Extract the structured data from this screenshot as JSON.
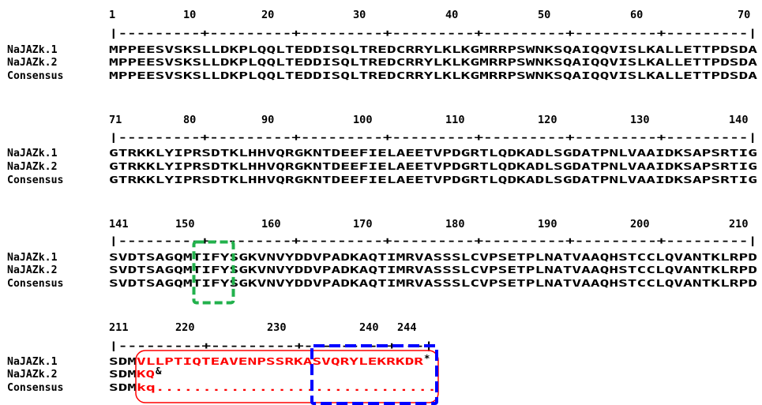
{
  "colors": {
    "text": "#000000",
    "mismatch_text": "#ff0000",
    "green_box": "#22b14c",
    "blue_box": "#0000ff",
    "red_box": "#ff0000"
  },
  "blocks": [
    {
      "ruler_labels": [
        "1",
        "10",
        "20",
        "30",
        "40",
        "50",
        "60",
        "70"
      ],
      "ruler_line": "|---------+---------+---------+---------+---------+---------+---------|",
      "rows": [
        {
          "label": "NaJAZk.1",
          "seq": "MPPEESVSKSLLDKPLQQLTEDDISQLTREDCRRYLKLKGMRRPSWNKSQAIQQVISLKALLETTPDSDA"
        },
        {
          "label": "NaJAZk.2",
          "seq": "MPPEESVSKSLLDKPLQQLTEDDISQLTREDCRRYLKLKGMRRPSWNKSQAIQQVISLKALLETTPDSDA"
        },
        {
          "label": "Consensus",
          "seq": "MPPEESVSKSLLDKPLQQLTEDDISQLTREDCRRYLKLKGMRRPSWNKSQAIQQVISLKALLETTPDSDA"
        }
      ]
    },
    {
      "ruler_labels": [
        "71",
        "80",
        "90",
        "100",
        "110",
        "120",
        "130",
        "140"
      ],
      "ruler_line": "|---------+---------+---------+---------+---------+---------+---------|",
      "rows": [
        {
          "label": "NaJAZk.1",
          "seq": "GTRKKLYIPRSDTKLHHVQRGKNTDEEFIELAEETVPDGRTLQDKADLSGDATPNLVAAIDKSAPSRTIG"
        },
        {
          "label": "NaJAZk.2",
          "seq": "GTRKKLYIPRSDTKLHHVQRGKNTDEEFIELAEETVPDGRTLQDKADLSGDATPNLVAAIDKSAPSRTIG"
        },
        {
          "label": "Consensus",
          "seq": "GTRKKLYIPRSDTKLHHVQRGKNTDEEFIELAEETVPDGRTLQDKADLSGDATPNLVAAIDKSAPSRTIG"
        }
      ]
    },
    {
      "ruler_labels": [
        "141",
        "150",
        "160",
        "170",
        "180",
        "190",
        "200",
        "210"
      ],
      "ruler_line": "|---------+---------+---------+---------+---------+---------+---------|",
      "rows": [
        {
          "label": "NaJAZk.1",
          "seq": "SVDTSAGQMTIFYSGKVNVYDDVPADKAQTIMRVASSSLCVPSETPLNATVAAQHSTCCLQVANTKLRPD"
        },
        {
          "label": "NaJAZk.2",
          "seq": "SVDTSAGQMTIFYSGKVNVYDDVPADKAQTIMRVASSSLCVPSETPLNATVAAQHSTCCLQVANTKLRPD"
        },
        {
          "label": "Consensus",
          "seq": "SVDTSAGQMTIFYSGKVNVYDDVPADKAQTIMRVASSSLCVPSETPLNATVAAQHSTCCLQVANTKLRPD"
        }
      ]
    },
    {
      "ruler_labels": [
        "211",
        "220",
        "230",
        "240",
        "244"
      ],
      "ruler_line": "|---------+---------+---------+---|",
      "rows": [
        {
          "label": "NaJAZk.1",
          "seq_black": "SDM",
          "seq_red": "VLLPTIQTEAVENPSSRKASVQRYLEKRKDR",
          "suffix": "*"
        },
        {
          "label": "NaJAZk.2",
          "seq_black": "SDM",
          "seq_red": "KQ",
          "suffix": "&"
        },
        {
          "label": "Consensus",
          "seq_black": "SDM",
          "seq_red": "kq..............................",
          "suffix": ""
        }
      ]
    }
  ]
}
